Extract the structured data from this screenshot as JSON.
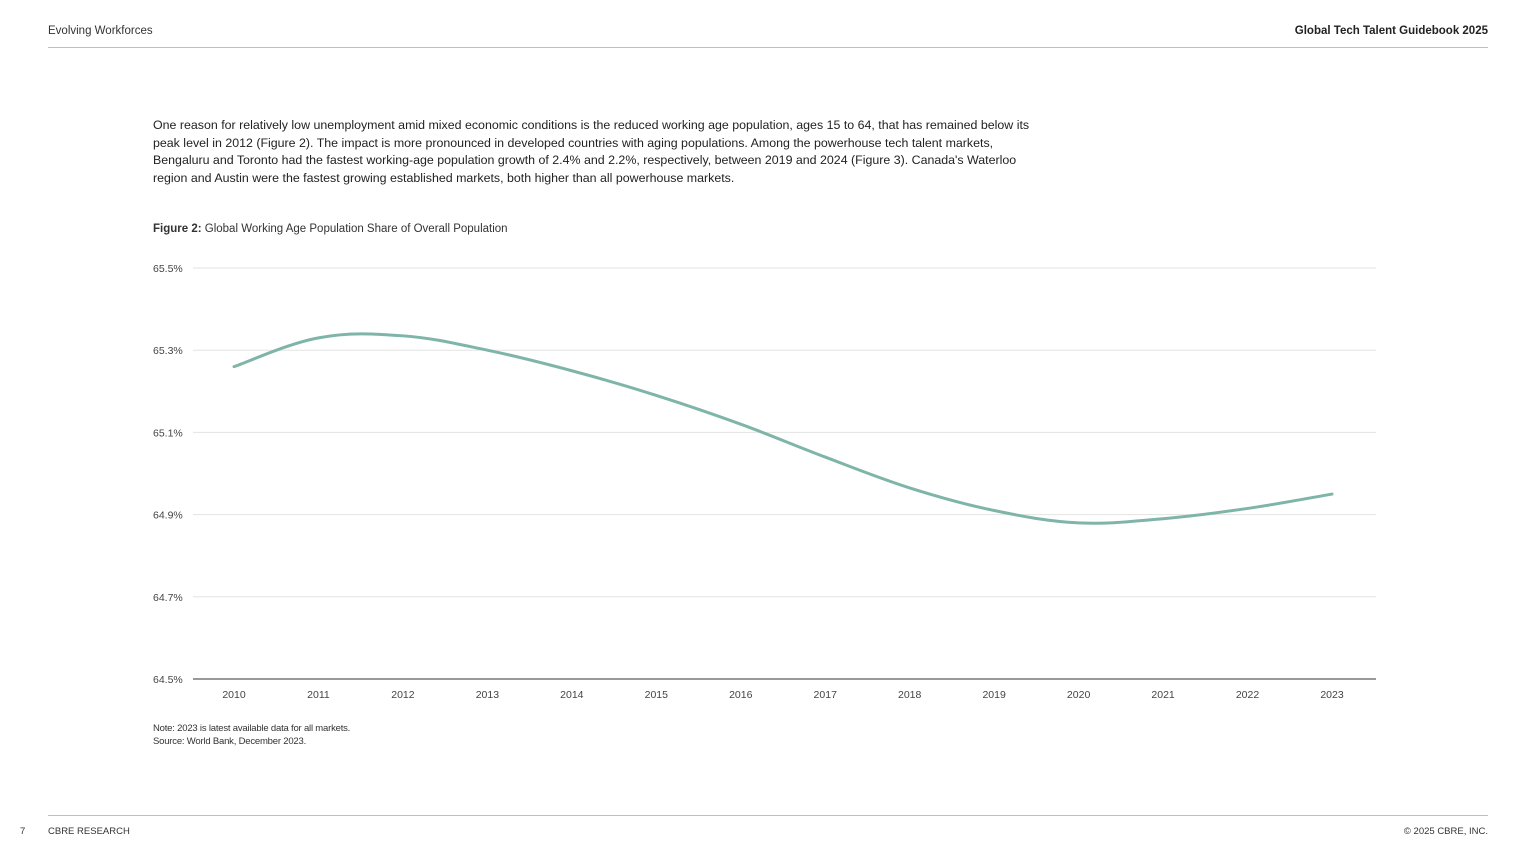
{
  "header": {
    "section": "Evolving Workforces",
    "publication": "Global Tech Talent Guidebook 2025"
  },
  "body": {
    "paragraph": "One reason for relatively low unemployment amid mixed economic conditions is the reduced working age population, ages 15 to 64, that has remained below its peak level in 2012 (Figure 2). The impact is more pronounced in developed countries with aging populations. Among the powerhouse tech talent markets, Bengaluru and Toronto had the fastest working-age population growth of 2.4% and 2.2%, respectively, between 2019 and 2024 (Figure 3). Canada's Waterloo region and Austin were the fastest growing established markets, both higher than all powerhouse markets."
  },
  "figure": {
    "label": "Figure 2:",
    "title": "Global Working Age Population Share of Overall Population"
  },
  "chart_data": {
    "type": "line",
    "title": "Global Working Age Population Share of Overall Population",
    "xlabel": "",
    "ylabel": "",
    "x": [
      "2010",
      "2011",
      "2012",
      "2013",
      "2014",
      "2015",
      "2016",
      "2017",
      "2018",
      "2019",
      "2020",
      "2021",
      "2022",
      "2023"
    ],
    "series": [
      {
        "values": [
          65.26,
          65.33,
          65.335,
          65.3,
          65.25,
          65.19,
          65.12,
          65.04,
          64.965,
          64.91,
          64.88,
          64.89,
          64.915,
          64.95
        ],
        "color": "#7fb5a8"
      }
    ],
    "yticks": [
      "65.5%",
      "65.3%",
      "65.1%",
      "64.9%",
      "64.7%",
      "64.5%"
    ],
    "ytick_values": [
      65.5,
      65.3,
      65.1,
      64.9,
      64.7,
      64.5
    ],
    "ylim": [
      64.5,
      65.5
    ],
    "grid": true,
    "legend": "none"
  },
  "notes": {
    "note": "Note: 2023 is latest available data for all markets.",
    "source": "Source: World Bank, December 2023."
  },
  "footer": {
    "page_number": "7",
    "brand": "CBRE RESEARCH",
    "copyright": "© 2025 CBRE, INC."
  }
}
